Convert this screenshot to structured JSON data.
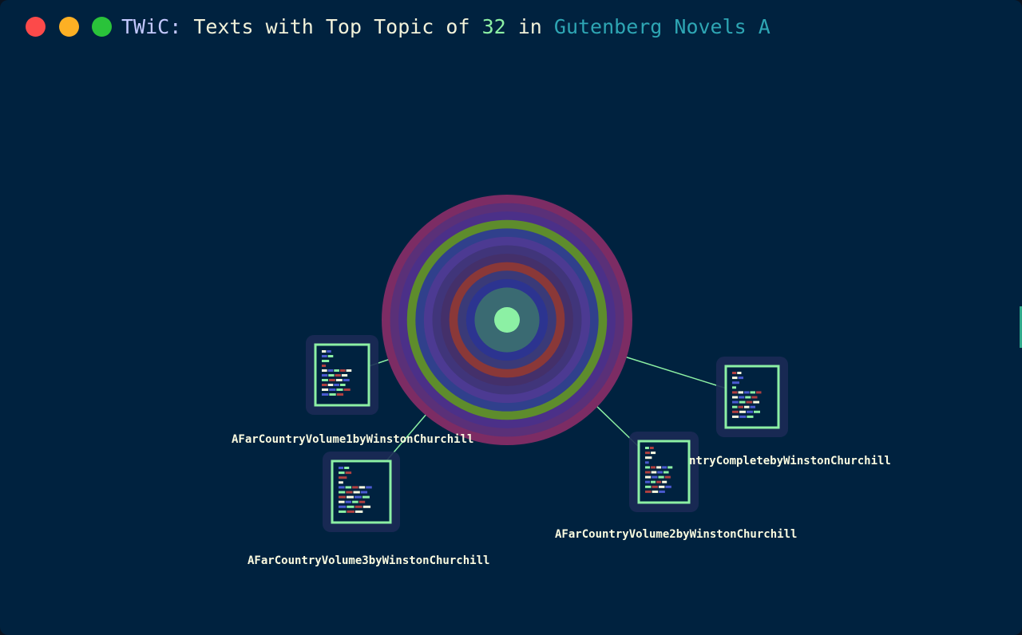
{
  "window": {
    "controls": {
      "close_icon": "close-icon",
      "minimize_icon": "minimize-icon",
      "maximize_icon": "maximize-icon"
    }
  },
  "title": {
    "brand": "TWiC:",
    "prefix": " Texts with Top Topic of ",
    "topic_id": "32",
    "middle": " in ",
    "corpus": "Gutenberg Novels A"
  },
  "topic_rings": {
    "colors": [
      "#7c2c64",
      "#5a3078",
      "#4b3088",
      "#5e8c2c",
      "#30408c",
      "#4c3a92",
      "#40357a",
      "#44306a",
      "#8a3838",
      "#3a3a78",
      "#2c3490",
      "#3a6a72"
    ],
    "center_color": "#8cf0a4",
    "edge_color": "#8cf0a4"
  },
  "documents": [
    {
      "label": "AFarCountryVolume1byWinstonChurchill"
    },
    {
      "label": "AFarCountryVolume3byWinstonChurchill"
    },
    {
      "label": "AFarCountryVolume2byWinstonChurchill"
    },
    {
      "label": "ntryCompletebyWinstonChurchill"
    }
  ],
  "doc_icon": {
    "name": "document-icon",
    "frame_color": "#8cf0a4",
    "line_colors": [
      "#fbfbe0",
      "#4a5ad0",
      "#8cf0a4",
      "#b04040"
    ]
  }
}
